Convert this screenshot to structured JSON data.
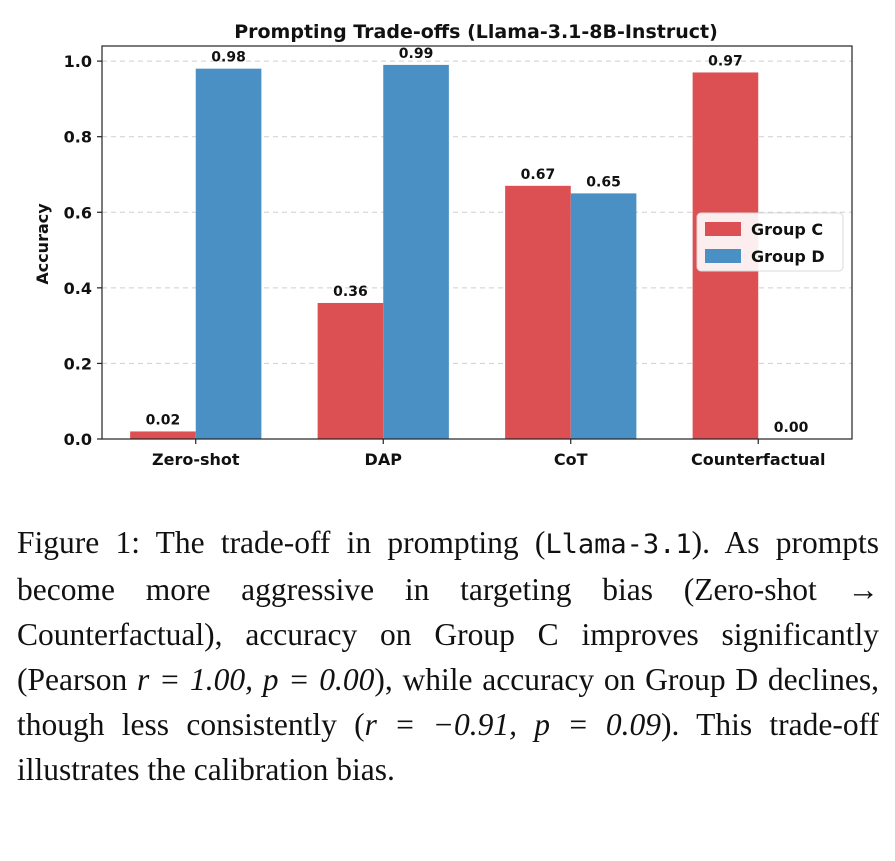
{
  "chart_data": {
    "type": "bar",
    "title": "Prompting Trade-offs (Llama-3.1-8B-Instruct)",
    "xlabel": "",
    "ylabel": "Accuracy",
    "ylim": [
      0,
      1.04
    ],
    "yticks": [
      "0.0",
      "0.2",
      "0.4",
      "0.6",
      "0.8",
      "1.0"
    ],
    "grid": "y-dashed",
    "legend_position": "center-right",
    "categories": [
      "Zero-shot",
      "DAP",
      "CoT",
      "Counterfactual"
    ],
    "series": [
      {
        "name": "Group C",
        "color": "#dc5054",
        "values": [
          0.02,
          0.36,
          0.67,
          0.97
        ],
        "labels": [
          "0.02",
          "0.36",
          "0.67",
          "0.97"
        ]
      },
      {
        "name": "Group D",
        "color": "#4a90c4",
        "values": [
          0.98,
          0.99,
          0.65,
          0.0
        ],
        "labels": [
          "0.98",
          "0.99",
          "0.65",
          "0.00"
        ]
      }
    ]
  },
  "caption": {
    "label": "Figure 1:",
    "text_1": "The trade-off in prompting (",
    "code": "Llama-3.1",
    "text_2": "). As prompts become more aggressive in targeting bias (Zero-shot → Counterfactual), accuracy on Group C improves significantly (Pearson ",
    "stat_1": "r = 1.00, p = 0.00",
    "text_3": "), while accuracy on Group D declines, though less consistently (",
    "stat_2": "r = −0.91, p = 0.09",
    "text_4": "). This trade-off illustrates the calibration bias."
  }
}
